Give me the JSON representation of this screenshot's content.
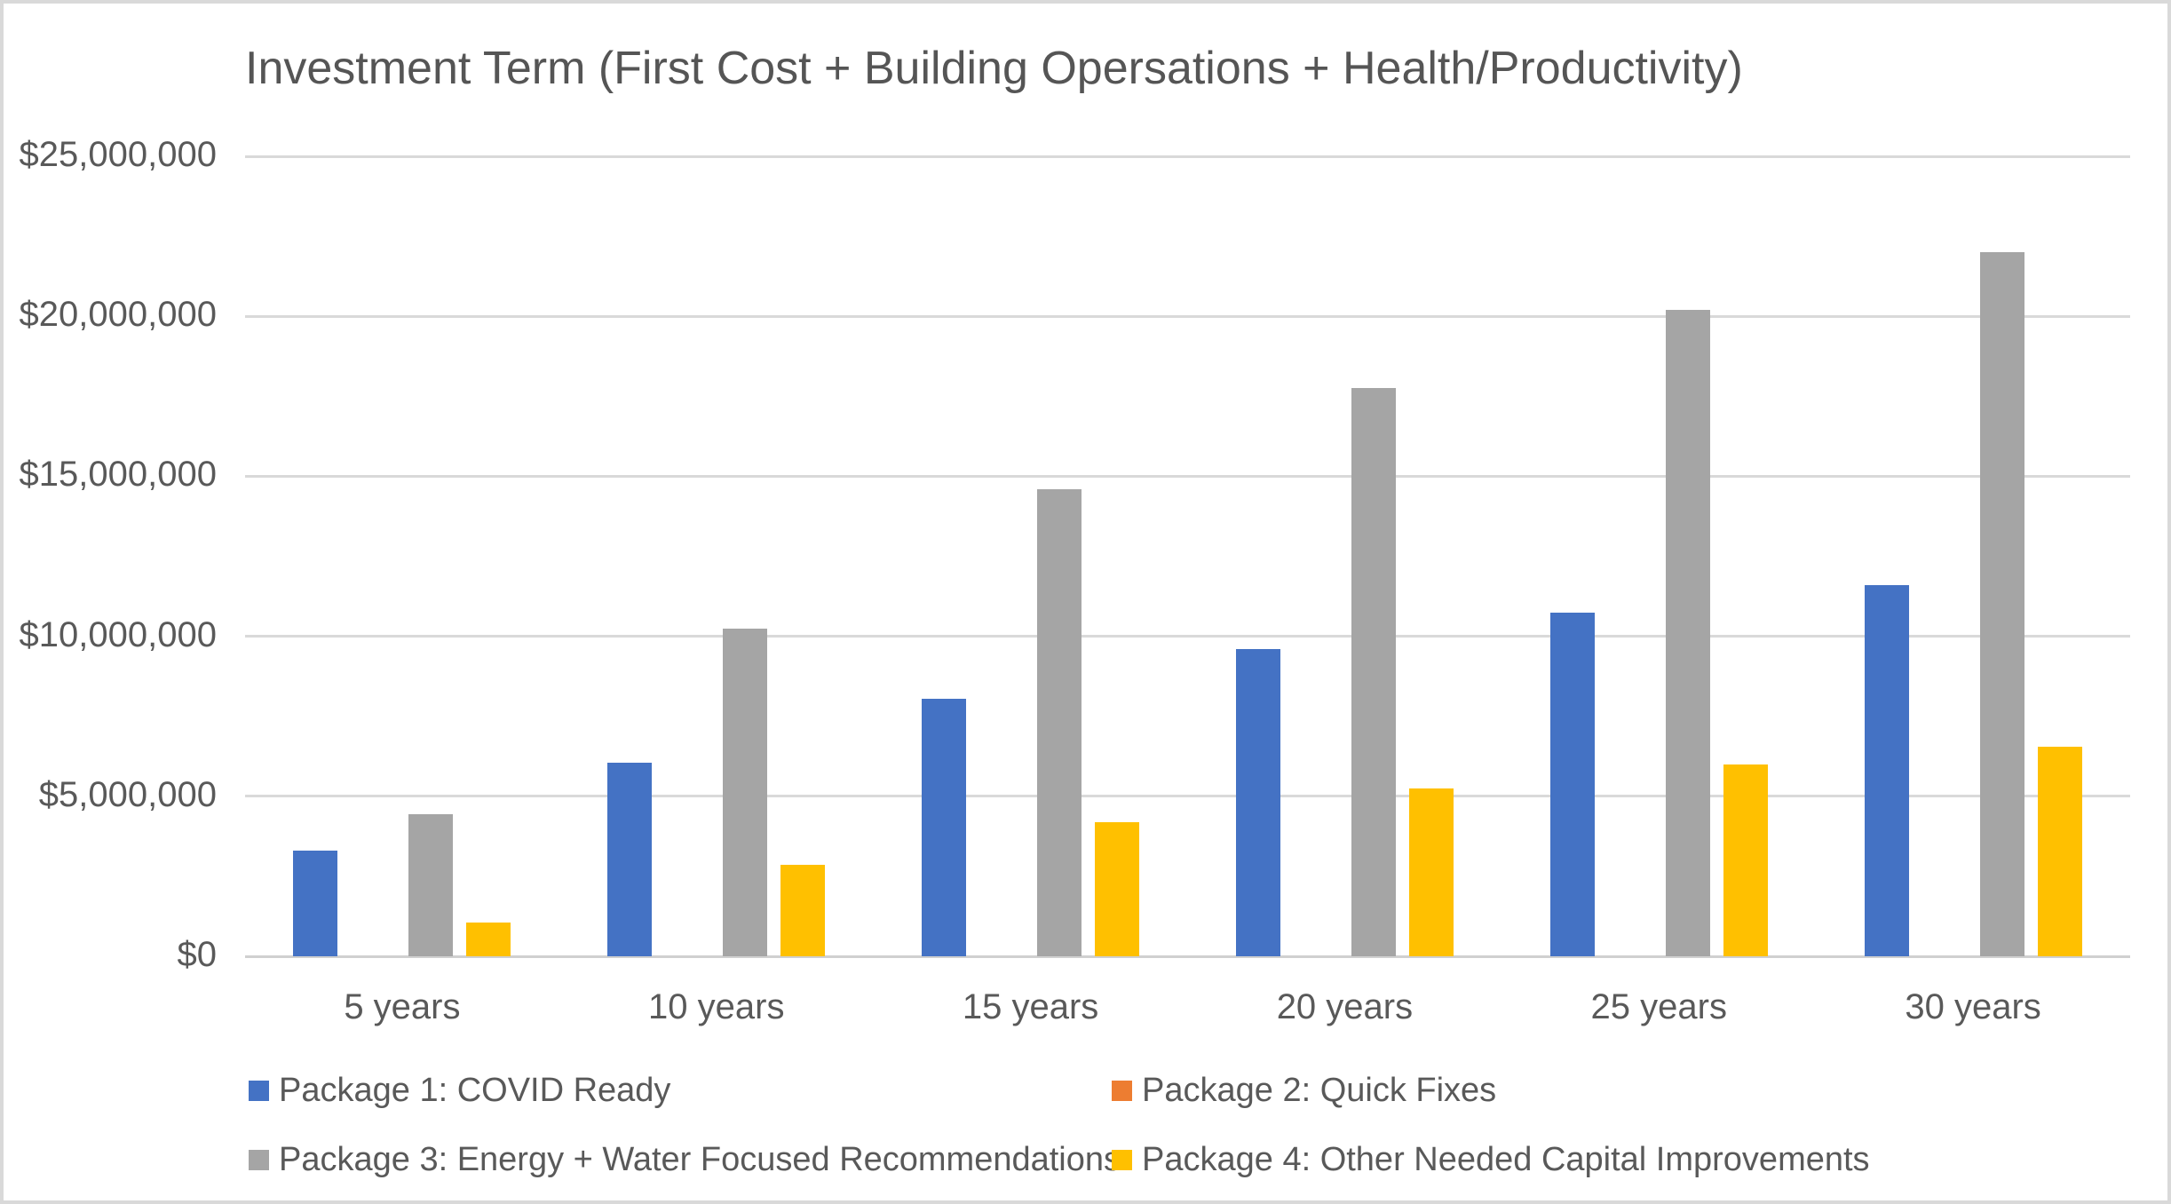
{
  "chart_data": {
    "type": "bar",
    "title": "Investment Term (First Cost + Building Opersations + Health/Productivity)",
    "categories": [
      "5 years",
      "10 years",
      "15 years",
      "20 years",
      "25 years",
      "30 years"
    ],
    "series": [
      {
        "name": "Package 1: COVID Ready",
        "color": "#4472C4",
        "values": [
          3300000,
          6050000,
          8050000,
          9600000,
          10750000,
          11600000
        ]
      },
      {
        "name": "Package 2: Quick Fixes",
        "color": "#ED7D31",
        "values": [
          0,
          0,
          0,
          0,
          0,
          0
        ]
      },
      {
        "name": "Package 3: Energy + Water Focused Recommendations",
        "color": "#A5A5A5",
        "values": [
          4450000,
          10250000,
          14600000,
          17750000,
          20200000,
          22000000
        ]
      },
      {
        "name": "Package 4: Other Needed Capital Improvements",
        "color": "#FFC000",
        "values": [
          1050000,
          2850000,
          4200000,
          5250000,
          6000000,
          6550000
        ]
      }
    ],
    "ylim": [
      0,
      25000000
    ],
    "ytick_step": 5000000,
    "ytick_labels": [
      "$0",
      "$5,000,000",
      "$10,000,000",
      "$15,000,000",
      "$20,000,000",
      "$25,000,000"
    ],
    "xlabel": "",
    "ylabel": "",
    "grid": "horizontal",
    "legend_position": "bottom",
    "colors": {
      "gridline": "#D9D9D9",
      "axis_text": "#595959",
      "title_text": "#555555",
      "background": "#FFFFFF",
      "frame_border": "#D9D9D9"
    }
  }
}
